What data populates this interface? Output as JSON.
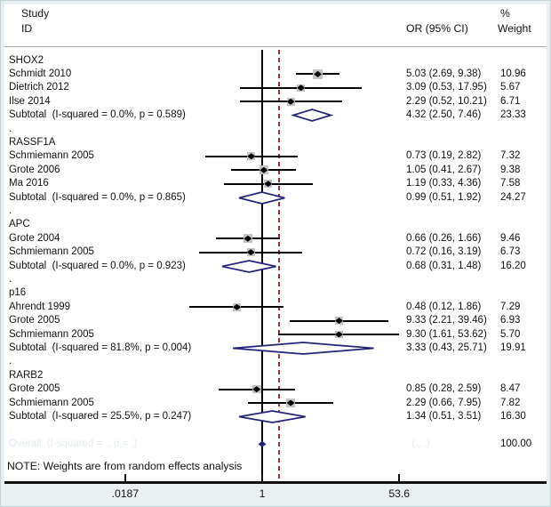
{
  "header": {
    "study_col_line1": "Study",
    "study_col_line2": "ID",
    "or_col": "OR (95% CI)",
    "weight_col_line1": "%",
    "weight_col_line2": "Weight"
  },
  "note": "NOTE: Weights are from random effects analysis",
  "colors": {
    "canvas_bg": "#e9f0f1",
    "plot_bg": "#ffffff",
    "header_rule": "#a9a9a9",
    "null_line": "#000000",
    "ref_line": "#a03434",
    "ci_line": "#000000",
    "point_marker": "#000000",
    "weight_box": "#c4c4c4",
    "pooled_diamond": "#23237b",
    "axis_line": "#111111",
    "text": "#111111",
    "faint_text": "#e3ebec"
  },
  "chart_data": {
    "type": "forest",
    "effect_measure": "OR (95% CI)",
    "x_scale": "log",
    "x_ticks": [
      {
        "label": ".0187",
        "value": 0.0187
      },
      {
        "label": "1",
        "value": 1
      },
      {
        "label": "53.6",
        "value": 53.6
      }
    ],
    "null_value": 1,
    "ref_line_or": 1.63,
    "separator_glyph": ".",
    "groups": [
      {
        "name": "SHOX2",
        "studies": [
          {
            "id": "Schmidt 2010",
            "or": 5.03,
            "lo": 2.69,
            "hi": 9.38,
            "or_text": "5.03 (2.69, 9.38)",
            "weight": 10.96,
            "weight_text": "10.96"
          },
          {
            "id": "Dietrich 2012",
            "or": 3.09,
            "lo": 0.53,
            "hi": 17.95,
            "or_text": "3.09 (0.53, 17.95)",
            "weight": 5.67,
            "weight_text": "5.67"
          },
          {
            "id": "Ilse 2014",
            "or": 2.29,
            "lo": 0.52,
            "hi": 10.21,
            "or_text": "2.29 (0.52, 10.21)",
            "weight": 6.71,
            "weight_text": "6.71"
          }
        ],
        "subtotal": {
          "label": "Subtotal  (I-squared = 0.0%, p = 0.589)",
          "or": 4.32,
          "lo": 2.5,
          "hi": 7.46,
          "or_text": "4.32 (2.50, 7.46)",
          "weight_text": "23.33"
        }
      },
      {
        "name": "RASSF1A",
        "studies": [
          {
            "id": "Schmiemann 2005",
            "or": 0.73,
            "lo": 0.19,
            "hi": 2.82,
            "or_text": "0.73 (0.19, 2.82)",
            "weight": 7.32,
            "weight_text": "7.32"
          },
          {
            "id": "Grote 2006",
            "or": 1.05,
            "lo": 0.41,
            "hi": 2.67,
            "or_text": "1.05 (0.41, 2.67)",
            "weight": 9.38,
            "weight_text": "9.38"
          },
          {
            "id": "Ma 2016",
            "or": 1.19,
            "lo": 0.33,
            "hi": 4.36,
            "or_text": "1.19 (0.33, 4.36)",
            "weight": 7.58,
            "weight_text": "7.58"
          }
        ],
        "subtotal": {
          "label": "Subtotal  (I-squared = 0.0%, p = 0.865)",
          "or": 0.99,
          "lo": 0.51,
          "hi": 1.92,
          "or_text": "0.99 (0.51, 1.92)",
          "weight_text": "24.27"
        }
      },
      {
        "name": "APC",
        "studies": [
          {
            "id": "Grote 2004",
            "or": 0.66,
            "lo": 0.26,
            "hi": 1.66,
            "or_text": "0.66 (0.26, 1.66)",
            "weight": 9.46,
            "weight_text": "9.46"
          },
          {
            "id": "Schmiemann 2005",
            "or": 0.72,
            "lo": 0.16,
            "hi": 3.19,
            "or_text": "0.72 (0.16, 3.19)",
            "weight": 6.73,
            "weight_text": "6.73"
          }
        ],
        "subtotal": {
          "label": "Subtotal  (I-squared = 0.0%, p = 0.923)",
          "or": 0.68,
          "lo": 0.31,
          "hi": 1.48,
          "or_text": "0.68 (0.31, 1.48)",
          "weight_text": "16.20"
        }
      },
      {
        "name": "p16",
        "studies": [
          {
            "id": "Ahrendt 1999",
            "or": 0.48,
            "lo": 0.12,
            "hi": 1.86,
            "or_text": "0.48 (0.12, 1.86)",
            "weight": 7.29,
            "weight_text": "7.29"
          },
          {
            "id": "Grote 2005",
            "or": 9.33,
            "lo": 2.21,
            "hi": 39.46,
            "or_text": "9.33 (2.21, 39.46)",
            "weight": 6.93,
            "weight_text": "6.93"
          },
          {
            "id": "Schmiemann 2005",
            "or": 9.3,
            "lo": 1.61,
            "hi": 53.62,
            "or_text": "9.30 (1.61, 53.62)",
            "weight": 5.7,
            "weight_text": "5.70"
          }
        ],
        "subtotal": {
          "label": "Subtotal  (I-squared = 81.8%, p = 0.004)",
          "or": 3.33,
          "lo": 0.43,
          "hi": 25.71,
          "or_text": "3.33 (0.43, 25.71)",
          "weight_text": "19.91"
        }
      },
      {
        "name": "RARB2",
        "studies": [
          {
            "id": "Grote 2005",
            "or": 0.85,
            "lo": 0.28,
            "hi": 2.59,
            "or_text": "0.85 (0.28, 2.59)",
            "weight": 8.47,
            "weight_text": "8.47"
          },
          {
            "id": "Schmiemann 2005",
            "or": 2.29,
            "lo": 0.66,
            "hi": 7.95,
            "or_text": "2.29 (0.66, 7.95)",
            "weight": 7.82,
            "weight_text": "7.82"
          }
        ],
        "subtotal": {
          "label": "Subtotal  (I-squared = 25.5%, p = 0.247)",
          "or": 1.34,
          "lo": 0.51,
          "hi": 3.51,
          "or_text": "1.34 (0.51, 3.51)",
          "weight_text": "16.30"
        }
      }
    ],
    "overall": {
      "label_text": "Overall  (I-squared = ., p = .)",
      "or_text": ". (., .)",
      "weight_text": "100.00",
      "faint": true,
      "marker_or": 1.0
    }
  }
}
